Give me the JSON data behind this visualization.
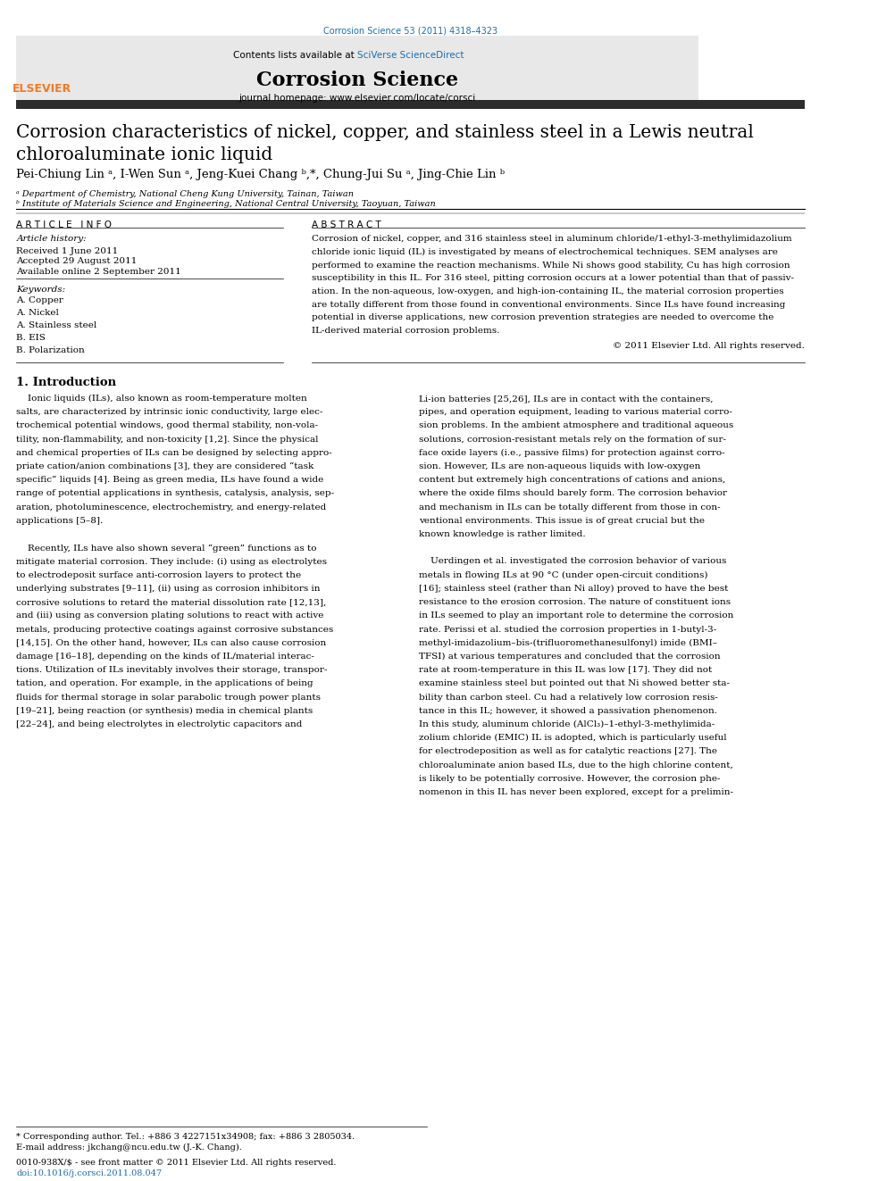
{
  "fig_width": 9.92,
  "fig_height": 13.23,
  "bg_color": "#ffffff",
  "top_link": "Corrosion Science 53 (2011) 4318–4323",
  "top_link_color": "#1a6faf",
  "header_bg": "#e8e8e8",
  "header_contents": "Contents lists available at ",
  "header_sciverse": "SciVerse ScienceDirect",
  "header_sciverse_color": "#1a6faf",
  "journal_name": "Corrosion Science",
  "journal_homepage_label": "journal homepage: www.elsevier.com/locate/corsci",
  "elsevier_color": "#f47920",
  "thick_bar_color": "#2c2c2c",
  "article_title_line1": "Corrosion characteristics of nickel, copper, and stainless steel in a Lewis neutral",
  "article_title_line2": "chloroaluminate ionic liquid",
  "authors": "Pei-Chiung Lin ᵃ, I-Wen Sun ᵃ, Jeng-Kuei Chang ᵇ,*, Chung-Jui Su ᵃ, Jing-Chie Lin ᵇ",
  "affil_a": "ᵃ Department of Chemistry, National Cheng Kung University, Tainan, Taiwan",
  "affil_b": "ᵇ Institute of Materials Science and Engineering, National Central University, Taoyuan, Taiwan",
  "section_article_info": "A R T I C L E   I N F O",
  "section_abstract": "A B S T R A C T",
  "article_history_label": "Article history:",
  "received": "Received 1 June 2011",
  "accepted": "Accepted 29 August 2011",
  "available": "Available online 2 September 2011",
  "keywords_label": "Keywords:",
  "keywords": [
    "A. Copper",
    "A. Nickel",
    "A. Stainless steel",
    "B. EIS",
    "B. Polarization"
  ],
  "copyright": "© 2011 Elsevier Ltd. All rights reserved.",
  "intro_heading": "1. Introduction",
  "footer_note1": "* Corresponding author. Tel.: +886 3 4227151x34908; fax: +886 3 2805034.",
  "footer_note2": "E-mail address: jkchang@ncu.edu.tw (J.-K. Chang).",
  "footer_issn": "0010-938X/$ - see front matter © 2011 Elsevier Ltd. All rights reserved.",
  "footer_doi": "doi:10.1016/j.corsci.2011.08.047"
}
